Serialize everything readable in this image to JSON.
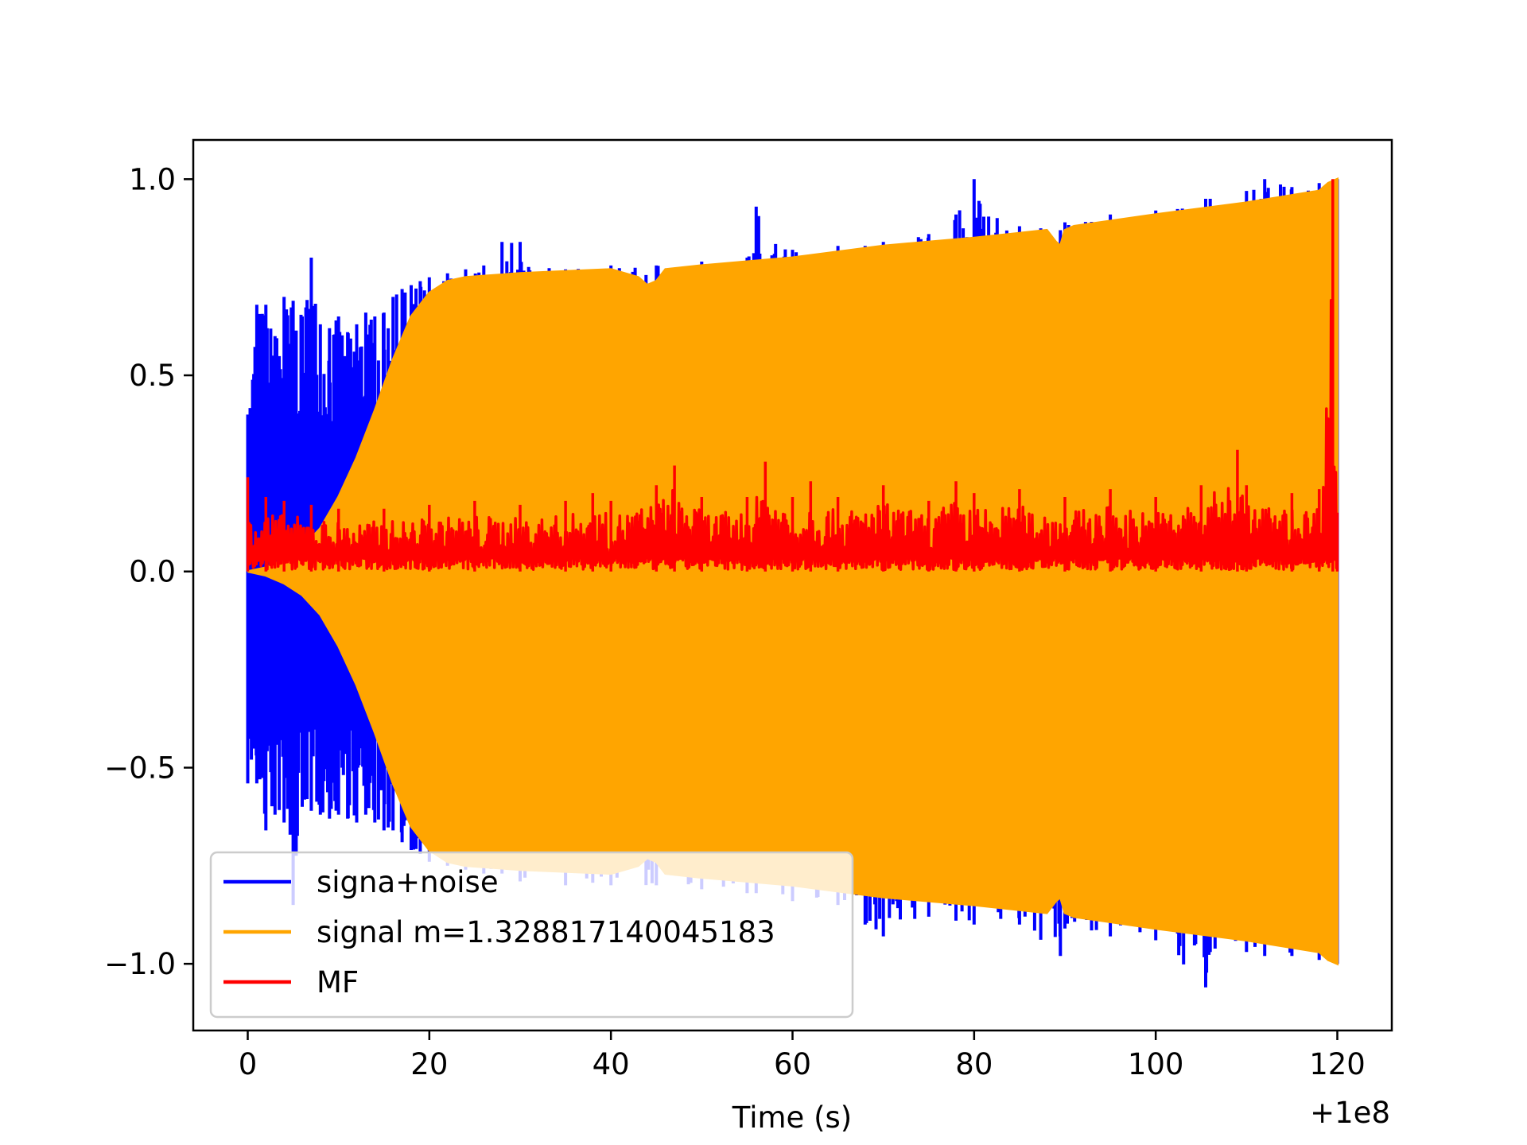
{
  "chart_data": {
    "type": "line",
    "title": "",
    "xlabel": "Time (s)",
    "ylabel": "",
    "x_offset_label": "+1e8",
    "xlim": [
      -6,
      126
    ],
    "ylim": [
      -1.17,
      1.1
    ],
    "xticks": [
      0,
      20,
      40,
      60,
      80,
      100,
      120
    ],
    "xtick_labels": [
      "0",
      "20",
      "40",
      "60",
      "80",
      "100",
      "120"
    ],
    "yticks": [
      -1.0,
      -0.5,
      0.0,
      0.5,
      1.0
    ],
    "ytick_labels": [
      "−1.0",
      "−0.5",
      "0.0",
      "0.5",
      "1.0"
    ],
    "grid": false,
    "legend_position": "lower-left",
    "series": [
      {
        "name": "signa+noise",
        "color": "#0000ff",
        "style": "dense oscillation, upper/lower extent",
        "x": [
          0,
          1,
          2,
          3,
          4,
          5,
          6,
          7,
          8,
          9,
          10,
          11,
          12,
          13,
          14,
          15,
          16,
          17,
          18,
          19,
          20,
          22,
          24,
          26,
          28,
          30,
          35,
          40,
          45,
          50,
          55,
          56,
          60,
          65,
          68,
          70,
          75,
          78,
          80,
          85,
          89.5,
          90,
          95,
          100,
          105.5,
          106,
          110,
          112,
          115,
          118,
          120
        ],
        "upper": [
          0.4,
          0.68,
          0.68,
          0.6,
          0.7,
          0.69,
          0.65,
          0.8,
          0.63,
          0.62,
          0.65,
          0.61,
          0.63,
          0.66,
          0.65,
          0.66,
          0.7,
          0.72,
          0.73,
          0.74,
          0.75,
          0.76,
          0.77,
          0.78,
          0.84,
          0.84,
          0.77,
          0.78,
          0.78,
          0.79,
          0.8,
          0.93,
          0.82,
          0.83,
          0.83,
          0.84,
          0.86,
          0.91,
          1.0,
          0.88,
          0.87,
          0.89,
          0.91,
          0.92,
          0.95,
          0.95,
          0.97,
          1.0,
          0.98,
          0.99,
          1.0
        ],
        "lower": [
          -0.54,
          -0.54,
          -0.66,
          -0.62,
          -0.64,
          -0.85,
          -0.6,
          -0.61,
          -0.62,
          -0.63,
          -0.62,
          -0.63,
          -0.64,
          -0.62,
          -0.64,
          -0.66,
          -0.66,
          -0.69,
          -0.71,
          -0.72,
          -0.74,
          -0.75,
          -0.76,
          -0.77,
          -0.77,
          -0.79,
          -0.8,
          -0.8,
          -0.8,
          -0.81,
          -0.82,
          -0.82,
          -0.84,
          -0.85,
          -0.9,
          -0.93,
          -0.88,
          -0.89,
          -0.9,
          -0.9,
          -0.98,
          -0.91,
          -0.93,
          -0.94,
          -1.06,
          -0.97,
          -0.97,
          -0.98,
          -0.98,
          -0.99,
          -1.0
        ]
      },
      {
        "name": "signal m=1.328817140045183",
        "color": "#ffa500",
        "style": "chirp envelope, symmetric",
        "x": [
          0,
          2,
          4,
          6,
          8,
          10,
          12,
          14,
          16,
          18,
          20,
          22,
          24,
          30,
          40,
          43,
          44,
          45,
          46,
          50,
          60,
          70,
          80,
          88,
          89,
          89.5,
          90,
          91,
          100,
          110,
          118,
          119,
          120
        ],
        "upper": [
          0.0,
          0.01,
          0.03,
          0.06,
          0.11,
          0.19,
          0.29,
          0.41,
          0.54,
          0.65,
          0.71,
          0.74,
          0.75,
          0.76,
          0.77,
          0.75,
          0.73,
          0.74,
          0.77,
          0.78,
          0.8,
          0.83,
          0.85,
          0.87,
          0.84,
          0.83,
          0.87,
          0.88,
          0.91,
          0.94,
          0.97,
          0.99,
          1.0
        ],
        "lower": [
          0.0,
          -0.01,
          -0.03,
          -0.06,
          -0.11,
          -0.19,
          -0.29,
          -0.41,
          -0.54,
          -0.65,
          -0.71,
          -0.74,
          -0.75,
          -0.76,
          -0.77,
          -0.75,
          -0.73,
          -0.74,
          -0.77,
          -0.78,
          -0.8,
          -0.83,
          -0.85,
          -0.87,
          -0.84,
          -0.83,
          -0.87,
          -0.88,
          -0.91,
          -0.94,
          -0.97,
          -0.99,
          -1.0
        ]
      },
      {
        "name": "MF",
        "color": "#ff0000",
        "style": "noisy positive band with spike near end",
        "x": [
          0,
          2,
          4,
          7,
          10,
          15,
          20,
          25,
          30,
          35,
          38,
          40,
          45,
          47,
          50,
          55,
          57,
          60,
          62,
          65,
          70,
          75,
          78,
          80,
          85,
          90,
          95,
          100,
          105,
          109,
          110,
          115,
          118,
          119.5,
          120
        ],
        "upper": [
          0.24,
          0.19,
          0.18,
          0.17,
          0.16,
          0.16,
          0.17,
          0.18,
          0.17,
          0.18,
          0.2,
          0.18,
          0.22,
          0.27,
          0.19,
          0.19,
          0.28,
          0.19,
          0.23,
          0.19,
          0.22,
          0.18,
          0.23,
          0.2,
          0.21,
          0.19,
          0.21,
          0.19,
          0.22,
          0.31,
          0.22,
          0.2,
          0.21,
          1.0,
          0.15
        ],
        "lower": [
          0.0,
          0.0,
          0.0,
          0.0,
          0.0,
          0.0,
          0.0,
          0.0,
          0.0,
          0.0,
          0.0,
          0.0,
          0.0,
          0.0,
          0.0,
          0.0,
          0.0,
          0.0,
          0.0,
          0.0,
          0.0,
          0.0,
          0.0,
          0.0,
          0.0,
          0.0,
          0.0,
          0.0,
          0.0,
          0.0,
          0.0,
          0.0,
          0.0,
          0.0,
          0.0
        ]
      }
    ]
  }
}
